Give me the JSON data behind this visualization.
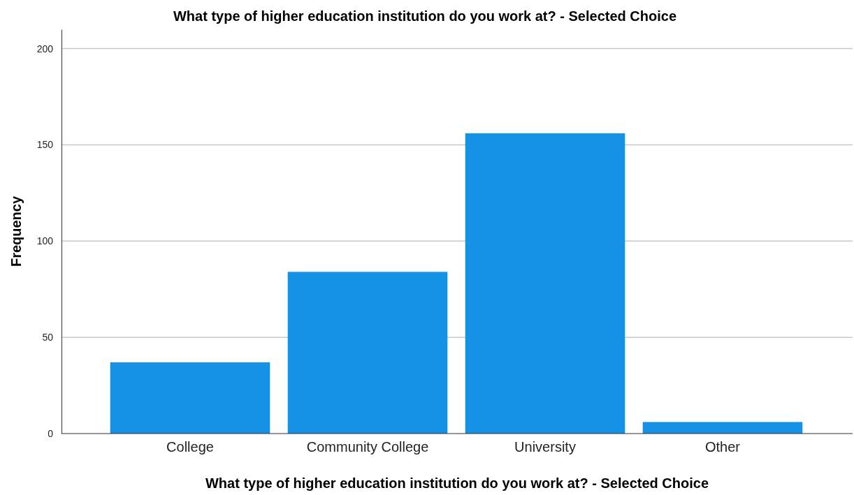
{
  "chart_data": {
    "type": "bar",
    "title": "What type of higher education institution do you work at? - Selected Choice",
    "xlabel": "What type of higher education institution do you work at? - Selected Choice",
    "ylabel": "Frequency",
    "categories": [
      "College",
      "Community College",
      "University",
      "Other"
    ],
    "values": [
      37,
      84,
      156,
      6
    ],
    "color": "#1591e6",
    "ylim": [
      0,
      210
    ],
    "yticks": [
      0,
      50,
      100,
      150,
      200
    ],
    "grid": "y"
  }
}
